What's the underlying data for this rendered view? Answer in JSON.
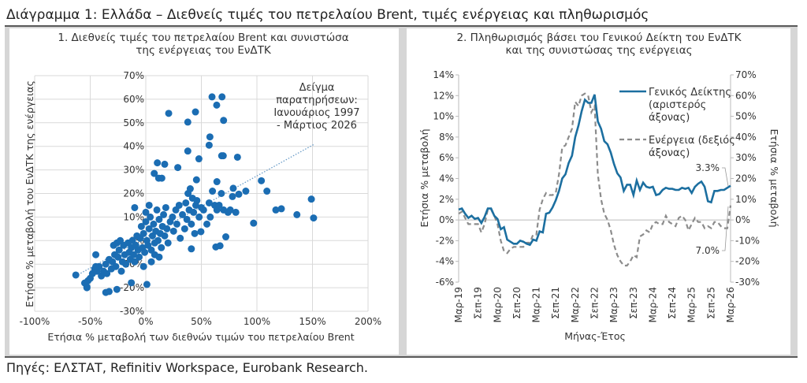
{
  "header": {
    "title": "Διάγραμμα 1: Ελλάδα – Διεθνείς τιμές του πετρελαίου Brent, τιμές ενέργειας και πληθωρισμός"
  },
  "footer": {
    "source": "Πηγές: ΕΛΣΤΑΤ, Refinitiv Workspace, Eurobank Research."
  },
  "colors": {
    "scatter": "#1b6db3",
    "general_index": "#1c6fa0",
    "energy": "#8c8c8c",
    "grid": "#d9d9d9",
    "panel_bg": "#d6d6d6"
  },
  "chart_data": [
    {
      "type": "scatter",
      "title_lines": [
        "1. Διεθνείς τιμές του πετρελαίου Brent και συνιστώσα",
        "της ενέργειας του ΕνΔΤΚ"
      ],
      "xlabel": "Ετήσια % μεταβολή των διεθνών τιμών του πετρελαίου Brent",
      "ylabel": "Ετήσια % μεταβολή του ΕνΔΤΚ της ενέργειας",
      "xlim": [
        -100,
        200
      ],
      "ylim": [
        -30,
        70
      ],
      "x_ticks": [
        "-100%",
        "-50%",
        "0%",
        "50%",
        "100%",
        "150%",
        "200%"
      ],
      "y_ticks": [
        "-30%",
        "-20%",
        "-10%",
        "0%",
        "10%",
        "20%",
        "30%",
        "40%",
        "50%",
        "60%",
        "70%"
      ],
      "grid": true,
      "annotation_lines": [
        "Δείγμα",
        "παρατηρήσεων:",
        "Ιανουάριος 1997",
        "- Μάρτιος 2026"
      ],
      "trendline": {
        "style": "dotted",
        "from": [
          -63,
          -15
        ],
        "to": [
          152,
          41
        ]
      },
      "points": [
        [
          20.6,
          54
        ],
        [
          44.7,
          54.6
        ],
        [
          37.8,
          50.3
        ],
        [
          59.6,
          61
        ],
        [
          68.6,
          61
        ],
        [
          63.8,
          57.5
        ],
        [
          70,
          51
        ],
        [
          57.7,
          44
        ],
        [
          57,
          40.5
        ],
        [
          37.8,
          38
        ],
        [
          47.8,
          34.7
        ],
        [
          68.3,
          36
        ],
        [
          69.7,
          36
        ],
        [
          82.5,
          35.4
        ],
        [
          28.8,
          31
        ],
        [
          10.4,
          33
        ],
        [
          17,
          32.4
        ],
        [
          7.6,
          28.5
        ],
        [
          11.6,
          26.5
        ],
        [
          14.4,
          26.5
        ],
        [
          45.6,
          25.8
        ],
        [
          64,
          25
        ],
        [
          104,
          25.4
        ],
        [
          109,
          21
        ],
        [
          90,
          21
        ],
        [
          78.7,
          22.2
        ],
        [
          83.7,
          19.7
        ],
        [
          78,
          18.7
        ],
        [
          149,
          17.6
        ],
        [
          151,
          9.6
        ],
        [
          136,
          11
        ],
        [
          117,
          13
        ],
        [
          122,
          13.5
        ],
        [
          97,
          7.4
        ],
        [
          81,
          12
        ],
        [
          72,
          1.6
        ],
        [
          63,
          -2.7
        ],
        [
          66.8,
          -2.2
        ],
        [
          41,
          -3.5
        ],
        [
          49.6,
          3.8
        ],
        [
          1,
          -18.6
        ],
        [
          -13,
          -17.9
        ],
        [
          -63,
          -14.6
        ],
        [
          -36,
          -22
        ],
        [
          -33,
          -21.6
        ],
        [
          -26,
          -20.7
        ],
        [
          -53,
          -19.6
        ],
        [
          -45,
          -6
        ],
        [
          -52,
          -17
        ],
        [
          -50,
          -16
        ],
        [
          -48,
          -14
        ],
        [
          -46,
          -12
        ],
        [
          -44,
          -13
        ],
        [
          -42,
          -11
        ],
        [
          -40,
          -15
        ],
        [
          -38,
          -13
        ],
        [
          -36,
          -10
        ],
        [
          -35,
          -14
        ],
        [
          -33,
          -8
        ],
        [
          -31,
          -12
        ],
        [
          -30,
          -9
        ],
        [
          -28,
          -6
        ],
        [
          -27,
          -11
        ],
        [
          -25,
          -7
        ],
        [
          -24,
          -4
        ],
        [
          -22,
          -13
        ],
        [
          -21,
          -9
        ],
        [
          -20,
          -2
        ],
        [
          -19,
          -6
        ],
        [
          -18,
          -10
        ],
        [
          -16,
          -1
        ],
        [
          -15,
          -5
        ],
        [
          -14,
          -8
        ],
        [
          -13,
          -3
        ],
        [
          -12,
          0
        ],
        [
          -11,
          -6
        ],
        [
          -10,
          -9
        ],
        [
          -9,
          -2
        ],
        [
          -8,
          2
        ],
        [
          -7,
          -4
        ],
        [
          -6,
          -7
        ],
        [
          -5,
          1
        ],
        [
          -4,
          6
        ],
        [
          -3,
          -3
        ],
        [
          -2,
          3
        ],
        [
          -1,
          -5
        ],
        [
          0,
          8
        ],
        [
          0,
          12
        ],
        [
          1,
          0
        ],
        [
          2,
          -2
        ],
        [
          3,
          5
        ],
        [
          4,
          10
        ],
        [
          5,
          -4
        ],
        [
          6,
          2
        ],
        [
          7,
          7
        ],
        [
          8,
          -1
        ],
        [
          9,
          4
        ],
        [
          10,
          13
        ],
        [
          11,
          0
        ],
        [
          12,
          9
        ],
        [
          13,
          3
        ],
        [
          14,
          -3
        ],
        [
          15,
          6
        ],
        [
          16,
          11
        ],
        [
          17,
          2
        ],
        [
          18,
          14
        ],
        [
          19,
          5
        ],
        [
          20,
          -1
        ],
        [
          22,
          8
        ],
        [
          24,
          10
        ],
        [
          25,
          4
        ],
        [
          27,
          13
        ],
        [
          28,
          7
        ],
        [
          30,
          15
        ],
        [
          31,
          1
        ],
        [
          33,
          11
        ],
        [
          35,
          5
        ],
        [
          36,
          16
        ],
        [
          37,
          9
        ],
        [
          38,
          20
        ],
        [
          39,
          13
        ],
        [
          40,
          22
        ],
        [
          41,
          7
        ],
        [
          42,
          18
        ],
        [
          43,
          12
        ],
        [
          44,
          3
        ],
        [
          45,
          15
        ],
        [
          46,
          17
        ],
        [
          48,
          10
        ],
        [
          50,
          14
        ],
        [
          52,
          13
        ],
        [
          55,
          7
        ],
        [
          57,
          16
        ],
        [
          58,
          10
        ],
        [
          60,
          21
        ],
        [
          62,
          15
        ],
        [
          64,
          13
        ],
        [
          66,
          15
        ],
        [
          68,
          20
        ],
        [
          70,
          13
        ],
        [
          74,
          12
        ],
        [
          76,
          13
        ],
        [
          3,
          15
        ],
        [
          -10,
          14
        ],
        [
          5,
          -9
        ],
        [
          -2,
          -11
        ],
        [
          8,
          -6
        ],
        [
          12,
          -7
        ],
        [
          -29,
          -2
        ],
        [
          -26,
          -1
        ],
        [
          -23,
          0
        ],
        [
          -45,
          -11
        ],
        [
          -55,
          -18
        ],
        [
          -53,
          -20
        ]
      ]
    },
    {
      "type": "line",
      "title_lines": [
        "2. Πληθωρισμός βάσει του Γενικού Δείκτη του ΕνΔΤΚ",
        "και της συνιστώσας της ενέργειας"
      ],
      "xlabel": "Μήνας-Έτος",
      "ylabel_left": "Ετήσια % μεταβολή",
      "ylabel_right": "Ετήσια % μεταβολή",
      "ylim_left": [
        -6,
        14
      ],
      "ylim_right": [
        -30,
        70
      ],
      "y_ticks_left": [
        "-6%",
        "-4%",
        "-2%",
        "0%",
        "2%",
        "4%",
        "6%",
        "8%",
        "10%",
        "12%",
        "14%"
      ],
      "y_ticks_right": [
        "-30%",
        "-20%",
        "-10%",
        "0%",
        "10%",
        "20%",
        "30%",
        "40%",
        "50%",
        "60%",
        "70%"
      ],
      "x_range": [
        "Mar-2019",
        "Mar-2026"
      ],
      "x_ticks": [
        "Μαρ-19",
        "Σεπ-19",
        "Μαρ-20",
        "Σεπ-20",
        "Μαρ-21",
        "Σεπ-21",
        "Μαρ-22",
        "Σεπ-22",
        "Μαρ-23",
        "Σεπ-23",
        "Μαρ-24",
        "Σεπ-24",
        "Μαρ-25",
        "Σεπ-25",
        "Μαρ-26"
      ],
      "legend": [
        {
          "lines": [
            "Γενικός Δείκτης",
            "(αριστερός",
            "άξονας)"
          ],
          "style": "solid"
        },
        {
          "lines": [
            "Ενέργεια (δεξιός",
            "άξονας)"
          ],
          "style": "dashed"
        }
      ],
      "end_labels": {
        "general_index": "3.3%",
        "energy": "7.0%"
      },
      "series": [
        {
          "name": "Γενικός Δείκτης (αριστερός άξονας)",
          "axis": "left",
          "values": [
            1.0,
            1.1,
            0.6,
            0.2,
            0.4,
            0.1,
            0.2,
            -0.3,
            0.3,
            1.1,
            1.1,
            0.4,
            0.1,
            -0.9,
            -0.7,
            -1.9,
            -2.1,
            -2.3,
            -2.3,
            -2.0,
            -2.1,
            -2.3,
            -2.4,
            -1.9,
            -2.0,
            -1.1,
            -1.2,
            0.6,
            0.7,
            1.2,
            1.9,
            2.8,
            4.0,
            4.4,
            5.5,
            6.2,
            8.0,
            9.1,
            10.5,
            11.6,
            11.3,
            11.3,
            12.1,
            9.5,
            8.8,
            7.6,
            7.3,
            6.5,
            5.4,
            4.5,
            4.1,
            2.8,
            3.4,
            3.4,
            2.4,
            3.8,
            2.9,
            3.6,
            3.2,
            3.1,
            3.2,
            2.4,
            2.5,
            2.9,
            3.1,
            3.0,
            3.0,
            2.9,
            2.9,
            3.1,
            3.0,
            3.1,
            2.6,
            3.2,
            3.5,
            3.7,
            3.2,
            1.8,
            1.7,
            2.8,
            2.8,
            2.9,
            2.9,
            3.1,
            3.3
          ]
        },
        {
          "name": "Ενέργεια (δεξιός άξονας)",
          "axis": "right",
          "values": [
            3,
            4,
            1,
            -2,
            -2,
            -2,
            -2,
            -6,
            -2,
            5,
            5,
            2,
            -2,
            -10,
            -15,
            -16,
            -14,
            -13,
            -13,
            -13,
            -13,
            -11,
            -11,
            -7,
            -7,
            5,
            10,
            13,
            12,
            12,
            13,
            22,
            35,
            36,
            40,
            44,
            57,
            55,
            60,
            61,
            60,
            52,
            55,
            22,
            10,
            3,
            0,
            -5,
            -12,
            -17,
            -20,
            -22,
            -22,
            -20,
            -17,
            -18,
            -8,
            -7,
            -5,
            -6,
            -2,
            -1,
            -2,
            -2,
            2,
            -1,
            -2,
            -3,
            1,
            2,
            0,
            -5,
            -2,
            1,
            -1,
            -1,
            -4,
            -3,
            -4,
            -1,
            -1,
            -3,
            -4,
            -4,
            7
          ]
        }
      ]
    }
  ]
}
